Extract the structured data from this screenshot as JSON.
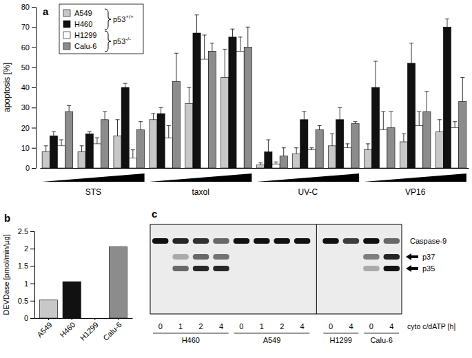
{
  "chart_data": [
    {
      "type": "bar",
      "title": "a",
      "ylabel": "apoptosis [%]",
      "categories": [
        null,
        "STS",
        null,
        null,
        "taxol",
        null,
        null,
        "UV-C",
        null,
        null,
        "VP16",
        null
      ],
      "series": [
        {
          "name": "A549",
          "color": "#c8c8c8",
          "values": [
            8,
            8,
            16,
            24,
            32,
            45,
            1.5,
            7,
            11,
            9,
            13,
            18
          ],
          "errors": [
            3,
            3,
            8,
            3,
            8,
            14,
            1,
            3,
            6,
            3,
            4,
            6
          ]
        },
        {
          "name": "H460",
          "color": "#111111",
          "values": [
            16,
            17,
            40,
            27,
            67,
            65,
            8,
            24,
            24,
            40,
            52,
            70
          ],
          "errors": [
            2,
            1,
            2,
            3,
            9,
            4,
            6,
            4,
            6,
            13,
            10,
            4
          ]
        },
        {
          "name": "H1299",
          "color": "#ffffff",
          "values": [
            11,
            12,
            5,
            15,
            54,
            58,
            2,
            9,
            10,
            19,
            21,
            20
          ],
          "errors": [
            3,
            3,
            4,
            6,
            12,
            7,
            1,
            1,
            2,
            9,
            7,
            3
          ]
        },
        {
          "name": "Calu-6",
          "color": "#8c8c8c",
          "values": [
            28,
            24,
            19,
            43,
            58,
            60,
            6,
            19,
            22,
            20,
            28,
            33
          ],
          "errors": [
            3,
            4,
            4,
            14,
            4,
            10,
            4,
            2,
            1,
            8,
            10,
            12
          ]
        }
      ],
      "ylim": [
        0,
        80
      ],
      "yticks": [
        0,
        10,
        20,
        30,
        40,
        50,
        60,
        70,
        80
      ],
      "legend": "top-left",
      "annotations": [
        {
          "text": "p53",
          "superscript": "+/+"
        },
        {
          "text": "p53",
          "superscript": "-/-"
        }
      ]
    },
    {
      "type": "bar",
      "title": "b",
      "ylabel": "DEVDase [pmol/min/µg]",
      "categories": [
        "A549",
        "H460",
        "H1299",
        "Calu-6"
      ],
      "values": [
        0.52,
        1.05,
        0,
        2.05
      ],
      "colors": [
        "#c8c8c8",
        "#111111",
        "#ffffff",
        "#8c8c8c"
      ],
      "ylim": [
        0,
        2.5
      ],
      "yticks": [
        0,
        0.5,
        1,
        1.5,
        2,
        2.5
      ]
    }
  ],
  "blot": {
    "title": "c",
    "time_label": "cyto c/dATP [h]",
    "bands": [
      {
        "label": "Caspase-9",
        "arrow": false
      },
      {
        "label": "p37",
        "arrow": true
      },
      {
        "label": "p35",
        "arrow": true
      }
    ],
    "groups": [
      {
        "label": "H460",
        "times": [
          0,
          1,
          2,
          4
        ],
        "intensity": [
          [
            1,
            0.9,
            0.85,
            0.6
          ],
          [
            0,
            0.3,
            0.6,
            0.55
          ],
          [
            0,
            0.6,
            0.9,
            0.9
          ]
        ]
      },
      {
        "label": "A549",
        "times": [
          0,
          1,
          2,
          4
        ],
        "intensity": [
          [
            1,
            1,
            1,
            1
          ],
          [
            0,
            0,
            0,
            0
          ],
          [
            0,
            0,
            0,
            0
          ]
        ]
      },
      {
        "label": "H1299",
        "times": [
          0,
          4
        ],
        "intensity": [
          [
            1,
            0.8
          ],
          [
            0,
            0
          ],
          [
            0,
            0
          ]
        ]
      },
      {
        "label": "Calu-6",
        "times": [
          0,
          4
        ],
        "intensity": [
          [
            1,
            0.6
          ],
          [
            0.5,
            0.9
          ],
          [
            0.3,
            1
          ]
        ]
      }
    ]
  }
}
